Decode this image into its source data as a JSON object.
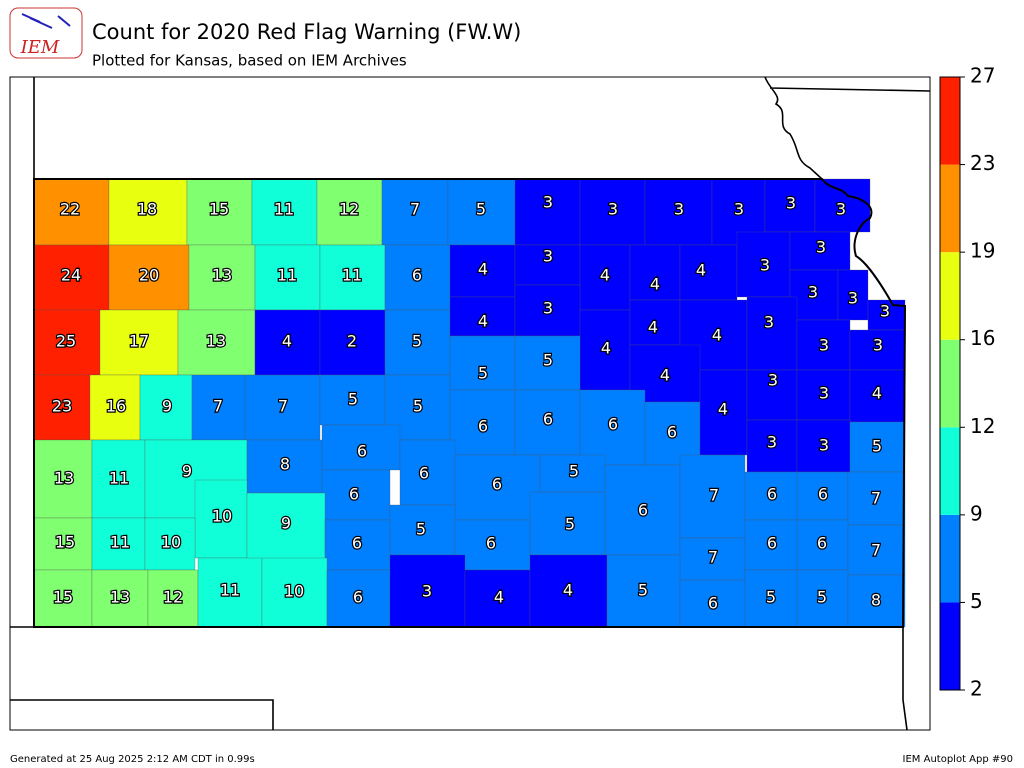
{
  "header": {
    "title": "Count for 2020 Red Flag Warning (FW.W)",
    "subtitle": "Plotted for Kansas, based on IEM Archives",
    "logo": "IEM"
  },
  "colorbar": {
    "ticks": [
      2,
      5,
      9,
      12,
      16,
      19,
      23,
      27
    ],
    "colors": [
      "#0000ff",
      "#0080ff",
      "#10ffd8",
      "#80ff70",
      "#e8ff10",
      "#ff9000",
      "#ff2000"
    ]
  },
  "counties": {
    "values": [
      22,
      18,
      15,
      11,
      12,
      7,
      5,
      3,
      3,
      3,
      3,
      3,
      3,
      24,
      20,
      13,
      11,
      11,
      6,
      4,
      3,
      4,
      4,
      4,
      3,
      3,
      3,
      3,
      3,
      25,
      17,
      13,
      4,
      2,
      5,
      4,
      3,
      4,
      4,
      4,
      3,
      3,
      3,
      23,
      16,
      9,
      7,
      7,
      5,
      5,
      5,
      5,
      4,
      6,
      6,
      6,
      6,
      4,
      3,
      3,
      4,
      13,
      11,
      9,
      8,
      6,
      6,
      6,
      6,
      5,
      3,
      3,
      5,
      10,
      9,
      6,
      7,
      6,
      6,
      7,
      5,
      5,
      15,
      11,
      10,
      6,
      6,
      7,
      6,
      6,
      7,
      15,
      13,
      12,
      11,
      10,
      6,
      3,
      4,
      4,
      5,
      6,
      5,
      5,
      8
    ]
  },
  "footer": {
    "left": "Generated at 25 Aug 2025 2:12 AM CDT in 0.99s",
    "right": "IEM Autoplot App #90"
  }
}
